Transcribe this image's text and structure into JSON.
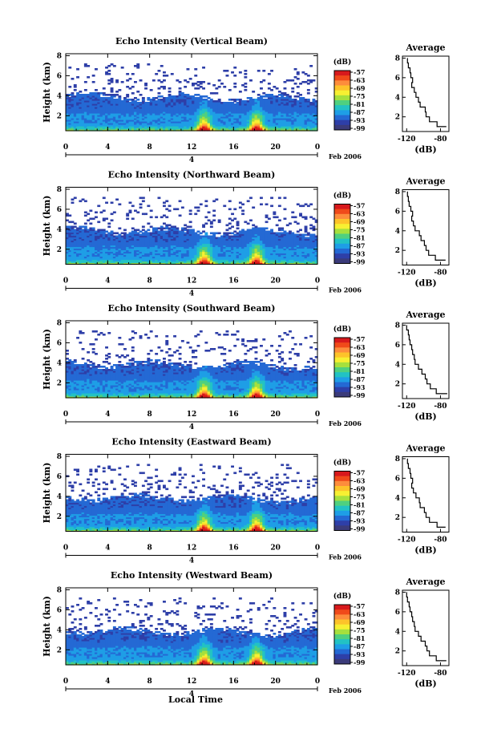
{
  "figure": {
    "xlabel": "Local Time",
    "date_label": "Feb 2006",
    "day_label": "4"
  },
  "colorbar": {
    "unit": "(dB)",
    "ticks": [
      "-57",
      "-63",
      "-69",
      "-75",
      "-81",
      "-87",
      "-93",
      "-99"
    ],
    "colors": [
      "#d7191c",
      "#f04a1a",
      "#fd8d3c",
      "#fdc32a",
      "#f7f032",
      "#a6e03d",
      "#4fd07f",
      "#22c2c4",
      "#1e9ee6",
      "#2469d4",
      "#2e3fa8",
      "#3b3b7a"
    ]
  },
  "chart_data": [
    {
      "type": "heatmap",
      "title": "Echo Intensity (Vertical Beam)",
      "xlabel": "Local Time",
      "ylabel": "Height (km)",
      "xticks": [
        "0",
        "4",
        "8",
        "12",
        "16",
        "20",
        "0"
      ],
      "yticks": [
        "2",
        "4",
        "6",
        "8"
      ],
      "xlim": [
        0,
        24
      ],
      "ylim": [
        0.5,
        8.2
      ],
      "colorbar_ticks": [
        "-57",
        "-63",
        "-69",
        "-75",
        "-81",
        "-87",
        "-93",
        "-99"
      ],
      "peaks_local_time": [
        13,
        18
      ],
      "profile": {
        "title": "Average",
        "xlabel": "(dB)",
        "xticks": [
          "-120",
          "-80"
        ],
        "xlim": [
          -125,
          -70
        ],
        "yticks": [
          "2",
          "4",
          "6",
          "8"
        ],
        "ylim": [
          0.5,
          8.2
        ],
        "height_km": [
          1.0,
          1.5,
          2.0,
          2.5,
          3.0,
          3.5,
          4.0,
          4.5,
          5.0,
          5.5,
          6.0,
          6.5,
          7.0,
          7.5,
          8.0
        ],
        "avg_db": [
          -73,
          -84,
          -93,
          -97,
          -98,
          -104,
          -106,
          -109,
          -111,
          -114,
          -113,
          -115,
          -116,
          -118,
          -119
        ]
      }
    },
    {
      "type": "heatmap",
      "title": "Echo Intensity (Northward Beam)",
      "xlabel": "Local Time",
      "ylabel": "Height (km)",
      "xticks": [
        "0",
        "4",
        "8",
        "12",
        "16",
        "20",
        "0"
      ],
      "yticks": [
        "2",
        "4",
        "6",
        "8"
      ],
      "xlim": [
        0,
        24
      ],
      "ylim": [
        0.5,
        8.2
      ],
      "colorbar_ticks": [
        "-57",
        "-63",
        "-69",
        "-75",
        "-81",
        "-87",
        "-93",
        "-99"
      ],
      "peaks_local_time": [
        13,
        18
      ],
      "profile": {
        "title": "Average",
        "xlabel": "(dB)",
        "xticks": [
          "-120",
          "-80"
        ],
        "xlim": [
          -125,
          -70
        ],
        "yticks": [
          "2",
          "4",
          "6",
          "8"
        ],
        "ylim": [
          0.5,
          8.2
        ],
        "height_km": [
          1.0,
          1.5,
          2.0,
          2.5,
          3.0,
          3.5,
          4.0,
          4.5,
          5.0,
          5.5,
          6.0,
          6.5,
          7.0,
          7.5,
          8.0
        ],
        "avg_db": [
          -74,
          -86,
          -94,
          -97,
          -99,
          -103,
          -105,
          -110,
          -112,
          -114,
          -113,
          -115,
          -117,
          -118,
          -119
        ]
      }
    },
    {
      "type": "heatmap",
      "title": "Echo Intensity (Southward Beam)",
      "xlabel": "Local Time",
      "ylabel": "Height (km)",
      "xticks": [
        "0",
        "4",
        "8",
        "12",
        "16",
        "20",
        "0"
      ],
      "yticks": [
        "2",
        "4",
        "6",
        "8"
      ],
      "xlim": [
        0,
        24
      ],
      "ylim": [
        0.5,
        8.2
      ],
      "colorbar_ticks": [
        "-57",
        "-63",
        "-69",
        "-75",
        "-81",
        "-87",
        "-93",
        "-99"
      ],
      "peaks_local_time": [
        13,
        18
      ],
      "profile": {
        "title": "Average",
        "xlabel": "(dB)",
        "xticks": [
          "-120",
          "-80"
        ],
        "xlim": [
          -125,
          -70
        ],
        "yticks": [
          "2",
          "4",
          "6",
          "8"
        ],
        "ylim": [
          0.5,
          8.2
        ],
        "height_km": [
          1.0,
          1.5,
          2.0,
          2.5,
          3.0,
          3.5,
          4.0,
          4.5,
          5.0,
          5.5,
          6.0,
          6.5,
          7.0,
          7.5,
          8.0
        ],
        "avg_db": [
          -72,
          -85,
          -92,
          -96,
          -98,
          -102,
          -106,
          -110,
          -111,
          -113,
          -114,
          -116,
          -117,
          -118,
          -120
        ]
      }
    },
    {
      "type": "heatmap",
      "title": "Echo Intensity (Eastward Beam)",
      "xlabel": "Local Time",
      "ylabel": "Height (km)",
      "xticks": [
        "0",
        "4",
        "8",
        "12",
        "16",
        "20",
        "0"
      ],
      "yticks": [
        "2",
        "4",
        "6",
        "8"
      ],
      "xlim": [
        0,
        24
      ],
      "ylim": [
        0.5,
        8.2
      ],
      "colorbar_ticks": [
        "-57",
        "-63",
        "-69",
        "-75",
        "-81",
        "-87",
        "-93",
        "-99"
      ],
      "peaks_local_time": [
        13,
        18
      ],
      "profile": {
        "title": "Average",
        "xlabel": "(dB)",
        "xticks": [
          "-120",
          "-80"
        ],
        "xlim": [
          -125,
          -70
        ],
        "yticks": [
          "2",
          "4",
          "6",
          "8"
        ],
        "ylim": [
          0.5,
          8.2
        ],
        "height_km": [
          1.0,
          1.5,
          2.0,
          2.5,
          3.0,
          3.5,
          4.0,
          4.5,
          5.0,
          5.5,
          6.0,
          6.5,
          7.0,
          7.5,
          8.0
        ],
        "avg_db": [
          -74,
          -84,
          -93,
          -97,
          -99,
          -104,
          -105,
          -109,
          -112,
          -114,
          -113,
          -115,
          -116,
          -118,
          -119
        ]
      }
    },
    {
      "type": "heatmap",
      "title": "Echo Intensity (Westward Beam)",
      "xlabel": "Local Time",
      "ylabel": "Height (km)",
      "xticks": [
        "0",
        "4",
        "8",
        "12",
        "16",
        "20",
        "0"
      ],
      "yticks": [
        "2",
        "4",
        "6",
        "8"
      ],
      "xlim": [
        0,
        24
      ],
      "ylim": [
        0.5,
        8.2
      ],
      "colorbar_ticks": [
        "-57",
        "-63",
        "-69",
        "-75",
        "-81",
        "-87",
        "-93",
        "-99"
      ],
      "peaks_local_time": [
        13,
        18
      ],
      "profile": {
        "title": "Average",
        "xlabel": "(dB)",
        "xticks": [
          "-120",
          "-80"
        ],
        "xlim": [
          -125,
          -70
        ],
        "yticks": [
          "2",
          "4",
          "6",
          "8"
        ],
        "ylim": [
          0.5,
          8.2
        ],
        "height_km": [
          1.0,
          1.5,
          2.0,
          2.5,
          3.0,
          3.5,
          4.0,
          4.5,
          5.0,
          5.5,
          6.0,
          6.5,
          7.0,
          7.5,
          8.0
        ],
        "avg_db": [
          -73,
          -85,
          -93,
          -96,
          -98,
          -103,
          -106,
          -110,
          -111,
          -113,
          -114,
          -116,
          -117,
          -119,
          -120
        ]
      }
    }
  ]
}
